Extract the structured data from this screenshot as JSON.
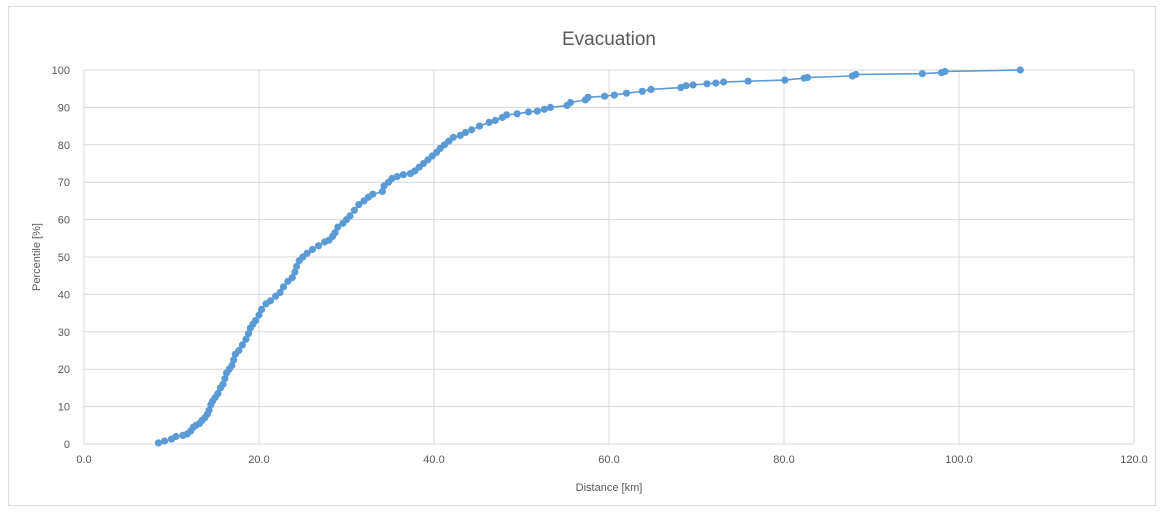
{
  "chart_data": {
    "type": "scatter",
    "title": "Evacuation",
    "xlabel": "Distance [km]",
    "ylabel": "Percentile [%]",
    "xlim": [
      0,
      120
    ],
    "ylim": [
      0,
      100
    ],
    "x_ticks": [
      "0.0",
      "20.0",
      "40.0",
      "60.0",
      "80.0",
      "100.0",
      "120.0"
    ],
    "y_ticks": [
      "0",
      "10",
      "20",
      "30",
      "40",
      "50",
      "60",
      "70",
      "80",
      "90",
      "100"
    ],
    "grid": true,
    "legend": "none",
    "series_color": "#5b9bd5",
    "series": [
      {
        "points": [
          [
            8.5,
            0.3
          ],
          [
            9.2,
            0.8
          ],
          [
            10.0,
            1.3
          ],
          [
            10.5,
            2.0
          ],
          [
            11.3,
            2.3
          ],
          [
            11.8,
            2.7
          ],
          [
            12.2,
            3.5
          ],
          [
            12.5,
            4.5
          ],
          [
            12.8,
            5.0
          ],
          [
            13.2,
            5.5
          ],
          [
            13.5,
            6.3
          ],
          [
            13.8,
            7.0
          ],
          [
            14.1,
            8.0
          ],
          [
            14.3,
            9.0
          ],
          [
            14.5,
            10.5
          ],
          [
            14.7,
            11.5
          ],
          [
            15.0,
            12.5
          ],
          [
            15.3,
            13.5
          ],
          [
            15.6,
            15.0
          ],
          [
            15.9,
            16.0
          ],
          [
            16.1,
            17.5
          ],
          [
            16.3,
            19.0
          ],
          [
            16.6,
            20.0
          ],
          [
            16.9,
            21.0
          ],
          [
            17.1,
            22.5
          ],
          [
            17.3,
            24.0
          ],
          [
            17.7,
            25.0
          ],
          [
            18.1,
            26.5
          ],
          [
            18.5,
            28.0
          ],
          [
            18.8,
            29.5
          ],
          [
            19.0,
            31.0
          ],
          [
            19.3,
            32.0
          ],
          [
            19.6,
            33.0
          ],
          [
            20.0,
            34.5
          ],
          [
            20.3,
            36.0
          ],
          [
            20.8,
            37.5
          ],
          [
            21.3,
            38.3
          ],
          [
            21.9,
            39.5
          ],
          [
            22.4,
            40.5
          ],
          [
            22.8,
            42.0
          ],
          [
            23.3,
            43.5
          ],
          [
            23.8,
            44.5
          ],
          [
            24.1,
            46.0
          ],
          [
            24.3,
            47.5
          ],
          [
            24.6,
            49.0
          ],
          [
            25.0,
            50.0
          ],
          [
            25.5,
            51.0
          ],
          [
            26.1,
            52.0
          ],
          [
            26.8,
            53.0
          ],
          [
            27.5,
            54.0
          ],
          [
            28.0,
            54.5
          ],
          [
            28.4,
            55.5
          ],
          [
            28.7,
            56.5
          ],
          [
            29.0,
            58.0
          ],
          [
            29.6,
            59.0
          ],
          [
            30.0,
            60.0
          ],
          [
            30.4,
            61.0
          ],
          [
            30.9,
            62.5
          ],
          [
            31.4,
            64.0
          ],
          [
            32.0,
            65.0
          ],
          [
            32.5,
            66.0
          ],
          [
            33.0,
            66.8
          ],
          [
            34.1,
            67.5
          ],
          [
            34.3,
            69.0
          ],
          [
            34.8,
            70.0
          ],
          [
            35.2,
            71.0
          ],
          [
            35.8,
            71.5
          ],
          [
            36.5,
            72.0
          ],
          [
            37.3,
            72.3
          ],
          [
            37.8,
            73.0
          ],
          [
            38.3,
            74.0
          ],
          [
            38.8,
            75.0
          ],
          [
            39.3,
            76.0
          ],
          [
            39.8,
            77.0
          ],
          [
            40.3,
            78.0
          ],
          [
            40.7,
            79.0
          ],
          [
            41.2,
            80.0
          ],
          [
            41.7,
            81.0
          ],
          [
            42.2,
            82.0
          ],
          [
            43.0,
            82.5
          ],
          [
            43.6,
            83.3
          ],
          [
            44.3,
            84.0
          ],
          [
            45.2,
            85.0
          ],
          [
            46.3,
            86.0
          ],
          [
            47.0,
            86.5
          ],
          [
            47.8,
            87.3
          ],
          [
            48.3,
            88.0
          ],
          [
            49.5,
            88.3
          ],
          [
            50.8,
            88.8
          ],
          [
            51.8,
            89.0
          ],
          [
            52.6,
            89.5
          ],
          [
            53.3,
            90.0
          ],
          [
            55.2,
            90.5
          ],
          [
            55.6,
            91.3
          ],
          [
            57.3,
            92.0
          ],
          [
            57.6,
            92.7
          ],
          [
            59.5,
            93.0
          ],
          [
            60.6,
            93.3
          ],
          [
            62.0,
            93.8
          ],
          [
            63.8,
            94.3
          ],
          [
            64.8,
            94.8
          ],
          [
            68.2,
            95.3
          ],
          [
            68.8,
            95.8
          ],
          [
            69.6,
            96.0
          ],
          [
            71.2,
            96.3
          ],
          [
            72.2,
            96.5
          ],
          [
            73.1,
            96.8
          ],
          [
            75.9,
            97.0
          ],
          [
            80.1,
            97.3
          ],
          [
            82.3,
            97.8
          ],
          [
            82.7,
            98.0
          ],
          [
            87.8,
            98.4
          ],
          [
            88.2,
            98.8
          ],
          [
            95.8,
            99.0
          ],
          [
            98.0,
            99.3
          ],
          [
            98.4,
            99.6
          ],
          [
            107.0,
            100.0
          ]
        ]
      }
    ]
  }
}
